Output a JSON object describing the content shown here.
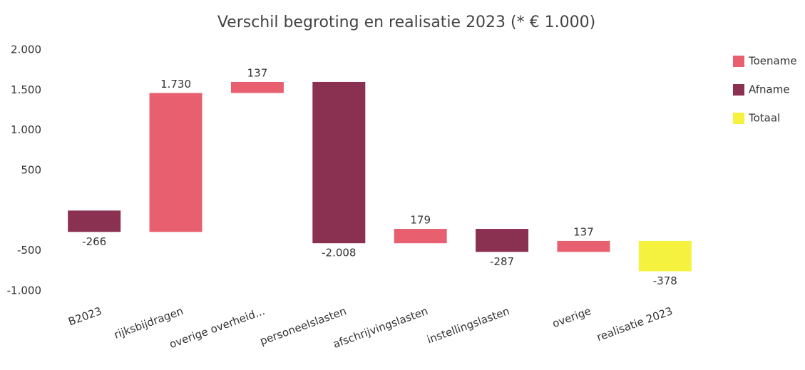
{
  "chart_data": {
    "type": "waterfall",
    "title": "Verschil begroting en realisatie 2023 (* € 1.000)",
    "categories": [
      "B2023",
      "rijksbijdragen",
      "overige overheid...",
      "personeelslasten",
      "afschrijvingslasten",
      "instellingslasten",
      "overige",
      "realisatie 2023"
    ],
    "series": [
      {
        "name": "Toename",
        "color": "#e8606f",
        "values": [
          null,
          1730,
          137,
          null,
          179,
          null,
          137,
          null
        ],
        "value_labels": [
          null,
          "1.730",
          "137",
          null,
          "179",
          null,
          "137",
          null
        ]
      },
      {
        "name": "Afname",
        "color": "#8a3152",
        "values": [
          -266,
          null,
          null,
          -2008,
          null,
          -287,
          null,
          null
        ],
        "value_labels": [
          "-266",
          null,
          null,
          "-2.008",
          null,
          "-287",
          null,
          null
        ]
      },
      {
        "name": "Totaal",
        "color": "#f4f23e",
        "values": [
          null,
          null,
          null,
          null,
          null,
          null,
          null,
          -378
        ],
        "value_labels": [
          null,
          null,
          null,
          null,
          null,
          null,
          null,
          "-378"
        ]
      }
    ],
    "ylim": [
      -1000,
      2000
    ],
    "yticks": [
      {
        "value": 2000,
        "label": "2.000"
      },
      {
        "value": 1500,
        "label": "1.500"
      },
      {
        "value": 1000,
        "label": "1.000"
      },
      500,
      -500,
      {
        "value": -1000,
        "label": "-1.000"
      }
    ],
    "legend": "right"
  }
}
